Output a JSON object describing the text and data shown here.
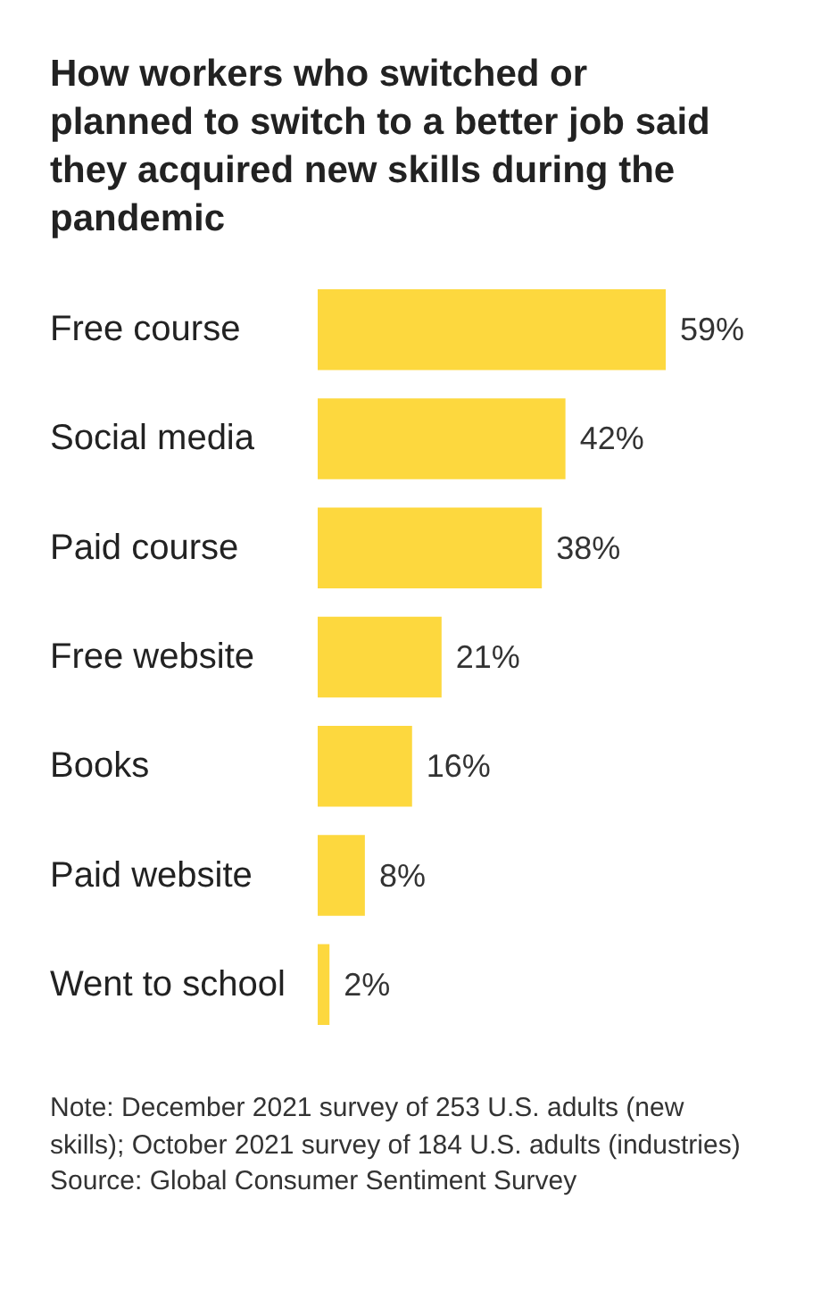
{
  "chart_data": {
    "type": "bar",
    "orientation": "horizontal",
    "title": "How workers who switched or planned to switch to a better job said they acquired new skills during the pandemic",
    "categories": [
      "Free course",
      "Social media",
      "Paid course",
      "Free website",
      "Books",
      "Paid website",
      "Went to school"
    ],
    "values": [
      59,
      42,
      38,
      21,
      16,
      8,
      2
    ],
    "value_labels": [
      "59%",
      "42%",
      "38%",
      "21%",
      "16%",
      "8%",
      "2%"
    ],
    "color": "#fdd83e",
    "tick_labels": "y",
    "annotations": [
      "Note: December 2021 survey of 253 U.S. adults (new skills); October 2021 survey of 184 U.S. adults (industries)",
      "Source: Global Consumer Sentiment Survey"
    ]
  }
}
